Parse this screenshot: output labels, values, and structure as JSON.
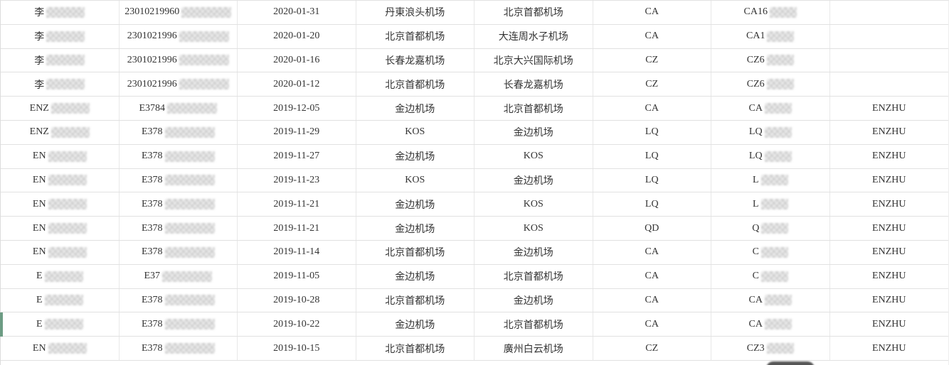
{
  "colors": {
    "accent_green": "#6d9c84",
    "border": "#e1e1e1",
    "text": "#333333",
    "blob_gray": "#565656"
  },
  "table": {
    "highlighted_row_index": 13,
    "rows": [
      {
        "name": "李",
        "id": "23010219960",
        "date": "2020-01-31",
        "from": "丹東浪头机场",
        "to": "北京首都机场",
        "airline": "CA",
        "flight": "CA16",
        "tag": "",
        "redacted": true
      },
      {
        "name": "李",
        "id": "2301021996",
        "date": "2020-01-20",
        "from": "北京首都机场",
        "to": "大连周水子机场",
        "airline": "CA",
        "flight": "CA1",
        "tag": "",
        "redacted": true
      },
      {
        "name": "李",
        "id": "2301021996",
        "date": "2020-01-16",
        "from": "长春龙嘉机场",
        "to": "北京大兴国际机场",
        "airline": "CZ",
        "flight": "CZ6",
        "tag": "",
        "redacted": true
      },
      {
        "name": "李",
        "id": "2301021996",
        "date": "2020-01-12",
        "from": "北京首都机场",
        "to": "长春龙嘉机场",
        "airline": "CZ",
        "flight": "CZ6",
        "tag": "",
        "redacted": true
      },
      {
        "name": "ENZ",
        "id": "E3784",
        "date": "2019-12-05",
        "from": "金边机场",
        "to": "北京首都机场",
        "airline": "CA",
        "flight": "CA",
        "tag": "ENZHU",
        "redacted": true
      },
      {
        "name": "ENZ",
        "id": "E378",
        "date": "2019-11-29",
        "from": "KOS",
        "to": "金边机场",
        "airline": "LQ",
        "flight": "LQ",
        "tag": "ENZHU",
        "redacted": true
      },
      {
        "name": "EN",
        "id": "E378",
        "date": "2019-11-27",
        "from": "金边机场",
        "to": "KOS",
        "airline": "LQ",
        "flight": "LQ",
        "tag": "ENZHU",
        "redacted": true
      },
      {
        "name": "EN",
        "id": "E378",
        "date": "2019-11-23",
        "from": "KOS",
        "to": "金边机场",
        "airline": "LQ",
        "flight": "L",
        "tag": "ENZHU",
        "redacted": true
      },
      {
        "name": "EN",
        "id": "E378",
        "date": "2019-11-21",
        "from": "金边机场",
        "to": "KOS",
        "airline": "LQ",
        "flight": "L",
        "tag": "ENZHU",
        "redacted": true
      },
      {
        "name": "EN",
        "id": "E378",
        "date": "2019-11-21",
        "from": "金边机场",
        "to": "KOS",
        "airline": "QD",
        "flight": "Q",
        "tag": "ENZHU",
        "redacted": true
      },
      {
        "name": "EN",
        "id": "E378",
        "date": "2019-11-14",
        "from": "北京首都机场",
        "to": "金边机场",
        "airline": "CA",
        "flight": "C",
        "tag": "ENZHU",
        "redacted": true
      },
      {
        "name": "E",
        "id": "E37",
        "date": "2019-11-05",
        "from": "金边机场",
        "to": "北京首都机场",
        "airline": "CA",
        "flight": "C",
        "tag": "ENZHU",
        "redacted": true
      },
      {
        "name": "E",
        "id": "E378",
        "date": "2019-10-28",
        "from": "北京首都机场",
        "to": "金边机场",
        "airline": "CA",
        "flight": "CA",
        "tag": "ENZHU",
        "redacted": true
      },
      {
        "name": "E",
        "id": "E378",
        "date": "2019-10-22",
        "from": "金边机场",
        "to": "北京首都机场",
        "airline": "CA",
        "flight": "CA",
        "tag": "ENZHU",
        "redacted": true
      },
      {
        "name": "EN",
        "id": "E378",
        "date": "2019-10-15",
        "from": "北京首都机场",
        "to": "廣州白云机场",
        "airline": "CZ",
        "flight": "CZ3",
        "tag": "ENZHU",
        "redacted": true
      }
    ]
  }
}
